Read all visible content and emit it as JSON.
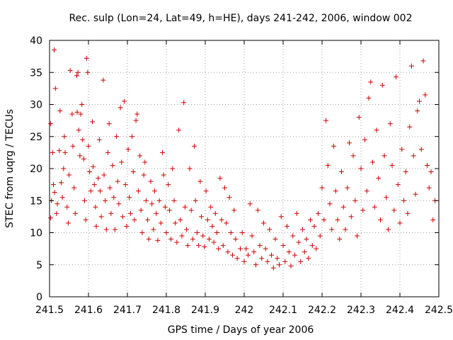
{
  "chart_data": {
    "type": "scatter",
    "title": "Rec. sulp (Lon=24, Lat=49, h=HE), days 241-242, 2006, window 002",
    "xlabel": "GPS time / Days of year 2006",
    "ylabel": "STEC from uqrg / TECUs",
    "xlim": [
      241.5,
      242.5
    ],
    "ylim": [
      0,
      40
    ],
    "xticks": [
      241.5,
      241.6,
      241.7,
      241.8,
      241.9,
      242,
      242.1,
      242.2,
      242.3,
      242.4,
      242.5
    ],
    "xtick_labels": [
      "241.5",
      "241.6",
      "241.7",
      "241.8",
      "241.9",
      "242",
      "242.1",
      "242.2",
      "242.3",
      "242.4",
      "242.5"
    ],
    "yticks": [
      0,
      5,
      10,
      15,
      20,
      25,
      30,
      35,
      40
    ],
    "ytick_labels": [
      "0",
      "5",
      "10",
      "15",
      "20",
      "25",
      "30",
      "35",
      "40"
    ],
    "grid": true,
    "marker": "plus",
    "color": "#cc0000",
    "series": [
      {
        "name": "STEC",
        "points": [
          [
            241.503,
            27.0
          ],
          [
            241.508,
            22.5
          ],
          [
            241.512,
            38.5
          ],
          [
            241.515,
            32.5
          ],
          [
            241.51,
            17.5
          ],
          [
            241.505,
            15.0
          ],
          [
            241.513,
            16.3
          ],
          [
            241.52,
            14.5
          ],
          [
            241.518,
            13.0
          ],
          [
            241.503,
            12.3
          ],
          [
            241.525,
            22.8
          ],
          [
            241.527,
            29.0
          ],
          [
            241.53,
            17.8
          ],
          [
            241.533,
            15.5
          ],
          [
            241.536,
            20.0
          ],
          [
            241.54,
            22.5
          ],
          [
            241.538,
            25.0
          ],
          [
            241.545,
            14.0
          ],
          [
            241.548,
            11.5
          ],
          [
            241.55,
            19.0
          ],
          [
            241.553,
            35.3
          ],
          [
            241.558,
            28.5
          ],
          [
            241.56,
            23.5
          ],
          [
            241.563,
            17.0
          ],
          [
            241.566,
            13.0
          ],
          [
            241.57,
            34.5
          ],
          [
            241.573,
            35.0
          ],
          [
            241.571,
            28.8
          ],
          [
            241.575,
            26.0
          ],
          [
            241.578,
            22.0
          ],
          [
            241.58,
            28.5
          ],
          [
            241.583,
            30.0
          ],
          [
            241.585,
            24.5
          ],
          [
            241.588,
            21.5
          ],
          [
            241.59,
            15.0
          ],
          [
            241.593,
            12.0
          ],
          [
            241.595,
            37.2
          ],
          [
            241.598,
            35.0
          ],
          [
            241.6,
            23.5
          ],
          [
            241.603,
            19.5
          ],
          [
            241.606,
            16.5
          ],
          [
            241.61,
            27.3
          ],
          [
            241.612,
            20.3
          ],
          [
            241.615,
            17.5
          ],
          [
            241.618,
            14.0
          ],
          [
            241.62,
            11.0
          ],
          [
            241.625,
            18.5
          ],
          [
            241.628,
            24.5
          ],
          [
            241.63,
            16.5
          ],
          [
            241.633,
            12.5
          ],
          [
            241.638,
            33.8
          ],
          [
            241.64,
            19.0
          ],
          [
            241.643,
            15.0
          ],
          [
            241.646,
            10.5
          ],
          [
            241.65,
            22.5
          ],
          [
            241.653,
            27.0
          ],
          [
            241.655,
            17.0
          ],
          [
            241.658,
            13.0
          ],
          [
            241.662,
            20.5
          ],
          [
            241.665,
            15.5
          ],
          [
            241.668,
            10.5
          ],
          [
            241.672,
            25.0
          ],
          [
            241.675,
            18.0
          ],
          [
            241.678,
            14.5
          ],
          [
            241.682,
            29.5
          ],
          [
            241.685,
            21.0
          ],
          [
            241.688,
            12.5
          ],
          [
            241.692,
            30.5
          ],
          [
            241.695,
            17.5
          ],
          [
            241.698,
            11.0
          ],
          [
            241.702,
            23.0
          ],
          [
            241.705,
            15.5
          ],
          [
            241.708,
            13.0
          ],
          [
            241.712,
            25.0
          ],
          [
            241.715,
            19.5
          ],
          [
            241.718,
            12.0
          ],
          [
            241.722,
            27.5
          ],
          [
            241.725,
            28.5
          ],
          [
            241.728,
            16.5
          ],
          [
            241.732,
            22.0
          ],
          [
            241.735,
            13.5
          ],
          [
            241.738,
            10.0
          ],
          [
            241.742,
            19.0
          ],
          [
            241.745,
            21.0
          ],
          [
            241.748,
            15.0
          ],
          [
            241.752,
            12.0
          ],
          [
            241.755,
            9.0
          ],
          [
            241.76,
            18.0
          ],
          [
            241.763,
            14.5
          ],
          [
            241.767,
            10.5
          ],
          [
            241.77,
            16.5
          ],
          [
            241.774,
            13.0
          ],
          [
            241.778,
            8.8
          ],
          [
            241.782,
            15.0
          ],
          [
            241.786,
            11.5
          ],
          [
            241.79,
            22.5
          ],
          [
            241.793,
            19.0
          ],
          [
            241.797,
            14.0
          ],
          [
            241.8,
            10.0
          ],
          [
            241.805,
            17.5
          ],
          [
            241.808,
            13.5
          ],
          [
            241.812,
            9.0
          ],
          [
            241.816,
            20.0
          ],
          [
            241.82,
            15.0
          ],
          [
            241.823,
            11.5
          ],
          [
            241.827,
            8.5
          ],
          [
            241.832,
            26.0
          ],
          [
            241.836,
            12.0
          ],
          [
            241.84,
            9.5
          ],
          [
            241.845,
            30.3
          ],
          [
            241.848,
            14.0
          ],
          [
            241.852,
            10.5
          ],
          [
            241.855,
            8.0
          ],
          [
            241.86,
            20.0
          ],
          [
            241.864,
            13.5
          ],
          [
            241.868,
            9.0
          ],
          [
            241.872,
            23.5
          ],
          [
            241.875,
            15.0
          ],
          [
            241.879,
            10.0
          ],
          [
            241.883,
            8.0
          ],
          [
            241.887,
            18.0
          ],
          [
            241.89,
            12.5
          ],
          [
            241.894,
            9.5
          ],
          [
            241.898,
            7.8
          ],
          [
            241.902,
            16.5
          ],
          [
            241.906,
            12.0
          ],
          [
            241.91,
            9.0
          ],
          [
            241.914,
            14.0
          ],
          [
            241.918,
            11.0
          ],
          [
            241.922,
            8.5
          ],
          [
            241.926,
            13.0
          ],
          [
            241.93,
            10.0
          ],
          [
            241.934,
            7.5
          ],
          [
            241.938,
            18.5
          ],
          [
            241.942,
            12.0
          ],
          [
            241.946,
            8.0
          ],
          [
            241.95,
            17.0
          ],
          [
            241.954,
            11.5
          ],
          [
            241.958,
            7.0
          ],
          [
            241.962,
            15.5
          ],
          [
            241.966,
            10.0
          ],
          [
            241.97,
            6.5
          ],
          [
            241.974,
            13.5
          ],
          [
            241.978,
            9.0
          ],
          [
            241.982,
            6.0
          ],
          [
            241.99,
            7.5
          ],
          [
            241.995,
            10.0
          ],
          [
            242.0,
            5.5
          ],
          [
            242.005,
            7.5
          ],
          [
            242.01,
            6.5
          ],
          [
            242.015,
            14.5
          ],
          [
            242.02,
            9.5
          ],
          [
            242.025,
            7.0
          ],
          [
            242.03,
            5.0
          ],
          [
            242.035,
            13.5
          ],
          [
            242.04,
            8.0
          ],
          [
            242.045,
            6.0
          ],
          [
            242.05,
            11.5
          ],
          [
            242.055,
            7.5
          ],
          [
            242.06,
            5.5
          ],
          [
            242.065,
            10.5
          ],
          [
            242.07,
            6.5
          ],
          [
            242.075,
            4.5
          ],
          [
            242.08,
            9.0
          ],
          [
            242.085,
            6.0
          ],
          [
            242.09,
            5.0
          ],
          [
            242.095,
            12.5
          ],
          [
            242.1,
            8.0
          ],
          [
            242.105,
            5.5
          ],
          [
            242.11,
            11.0
          ],
          [
            242.115,
            7.0
          ],
          [
            242.12,
            4.8
          ],
          [
            242.125,
            9.5
          ],
          [
            242.13,
            6.5
          ],
          [
            242.135,
            13.0
          ],
          [
            242.14,
            8.5
          ],
          [
            242.145,
            5.5
          ],
          [
            242.15,
            10.5
          ],
          [
            242.155,
            7.0
          ],
          [
            242.16,
            9.0
          ],
          [
            242.165,
            6.0
          ],
          [
            242.17,
            12.0
          ],
          [
            242.175,
            8.0
          ],
          [
            242.18,
            11.0
          ],
          [
            242.185,
            7.5
          ],
          [
            242.19,
            13.0
          ],
          [
            242.195,
            9.5
          ],
          [
            242.2,
            17.0
          ],
          [
            242.205,
            12.0
          ],
          [
            242.21,
            27.5
          ],
          [
            242.215,
            20.5
          ],
          [
            242.22,
            14.5
          ],
          [
            242.225,
            10.5
          ],
          [
            242.23,
            23.5
          ],
          [
            242.235,
            16.5
          ],
          [
            242.24,
            12.0
          ],
          [
            242.245,
            9.0
          ],
          [
            242.25,
            19.5
          ],
          [
            242.255,
            14.0
          ],
          [
            242.26,
            10.5
          ],
          [
            242.265,
            17.0
          ],
          [
            242.27,
            24.0
          ],
          [
            242.275,
            12.5
          ],
          [
            242.28,
            22.0
          ],
          [
            242.285,
            15.0
          ],
          [
            242.29,
            9.5
          ],
          [
            242.295,
            28.0
          ],
          [
            242.3,
            20.0
          ],
          [
            242.305,
            13.5
          ],
          [
            242.31,
            24.5
          ],
          [
            242.315,
            16.5
          ],
          [
            242.32,
            31.0
          ],
          [
            242.325,
            33.5
          ],
          [
            242.33,
            21.0
          ],
          [
            242.335,
            14.0
          ],
          [
            242.34,
            26.0
          ],
          [
            242.345,
            18.5
          ],
          [
            242.35,
            12.0
          ],
          [
            242.355,
            33.0
          ],
          [
            242.36,
            22.0
          ],
          [
            242.365,
            15.5
          ],
          [
            242.37,
            10.5
          ],
          [
            242.375,
            27.0
          ],
          [
            242.38,
            20.5
          ],
          [
            242.385,
            13.5
          ],
          [
            242.39,
            34.3
          ],
          [
            242.395,
            17.5
          ],
          [
            242.4,
            11.5
          ],
          [
            242.405,
            23.0
          ],
          [
            242.41,
            15.0
          ],
          [
            242.415,
            19.5
          ],
          [
            242.42,
            13.0
          ],
          [
            242.425,
            26.5
          ],
          [
            242.43,
            36.0
          ],
          [
            242.435,
            22.0
          ],
          [
            242.44,
            16.0
          ],
          [
            242.445,
            29.0
          ],
          [
            242.45,
            30.5
          ],
          [
            242.455,
            23.0
          ],
          [
            242.46,
            36.8
          ],
          [
            242.465,
            31.5
          ],
          [
            242.47,
            20.5
          ],
          [
            242.475,
            17.0
          ],
          [
            242.48,
            19.5
          ],
          [
            242.485,
            12.0
          ],
          [
            242.49,
            15.0
          ]
        ]
      }
    ]
  }
}
